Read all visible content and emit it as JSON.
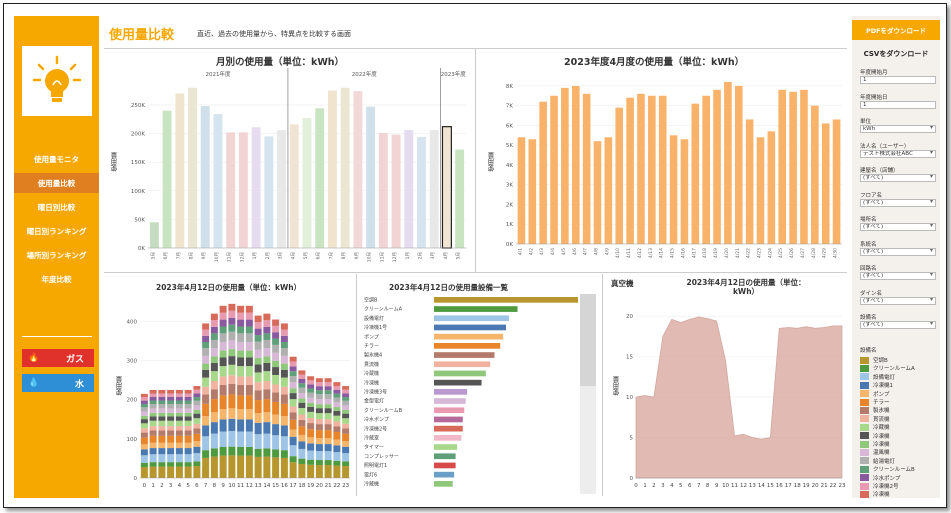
{
  "nav": {
    "items": [
      "使用量モニタ",
      "使用量比較",
      "曜日別比較",
      "曜日別ランキング",
      "場所別ランキング",
      "年度比較"
    ],
    "active_index": 1,
    "gas_label": "ガス",
    "water_label": "水"
  },
  "header": {
    "title": "使用量比較",
    "subtitle": "直近、過去の使用量から、特異点を比較する画面"
  },
  "sidebar": {
    "pdf_button": "PDFをダウンロード",
    "csv_button": "CSVをダウンロード",
    "filters": [
      {
        "label": "年度開始月",
        "value": "1",
        "type": "input"
      },
      {
        "label": "年度開始日",
        "value": "1",
        "type": "input"
      },
      {
        "label": "単位",
        "value": "kWh",
        "type": "select"
      },
      {
        "label": "法人名（ユーザー）",
        "value": "テスト株式会社ABC",
        "type": "select"
      },
      {
        "label": "建屋名（店舗）",
        "value": "(すべて)",
        "type": "select"
      },
      {
        "label": "フロア名",
        "value": "(すべて)",
        "type": "select"
      },
      {
        "label": "場所名",
        "value": "(すべて)",
        "type": "select"
      },
      {
        "label": "系統名",
        "value": "(すべて)",
        "type": "select"
      },
      {
        "label": "回路名",
        "value": "(すべて)",
        "type": "select"
      },
      {
        "label": "ダイン名",
        "value": "(すべて)",
        "type": "select"
      },
      {
        "label": "設備名",
        "value": "(すべて)",
        "type": "select"
      }
    ],
    "legend_title": "設備名",
    "legend": [
      {
        "name": "空調B",
        "color": "#b8962e"
      },
      {
        "name": "クリーンルームA",
        "color": "#4e9a3e"
      },
      {
        "name": "設備電灯",
        "color": "#9ec4e6"
      },
      {
        "name": "冷凍機1",
        "color": "#4a78b0"
      },
      {
        "name": "ポンプ",
        "color": "#f5b56a"
      },
      {
        "name": "チラー",
        "color": "#e8852a"
      },
      {
        "name": "製氷機",
        "color": "#b47a6a"
      },
      {
        "name": "貫流機",
        "color": "#f2b2a0"
      },
      {
        "name": "冷蔵機",
        "color": "#a8d88a"
      },
      {
        "name": "冷凍機",
        "color": "#555555"
      },
      {
        "name": "冷凍機",
        "color": "#8fc87a"
      },
      {
        "name": "温風機",
        "color": "#d7b8d7"
      },
      {
        "name": "給湯電灯",
        "color": "#b0b0b0"
      },
      {
        "name": "クリーンルームB",
        "color": "#5fa07a"
      },
      {
        "name": "冷水ポンプ",
        "color": "#8a5aa0"
      },
      {
        "name": "冷凍機2号",
        "color": "#e89ab0"
      },
      {
        "name": "冷凍機",
        "color": "#d86a5a"
      }
    ]
  },
  "chart_data": [
    {
      "type": "bar",
      "title": "月別の使用量（単位：kWh）",
      "ylabel": "使用量",
      "year_groups": [
        "2021年度",
        "2022年度",
        "2023年度"
      ],
      "categories": [
        "5月",
        "6月",
        "7月",
        "8月",
        "9月",
        "10月",
        "11月",
        "12月",
        "1月",
        "2月",
        "3月",
        "4月",
        "5月",
        "6月",
        "7月",
        "8月",
        "9月",
        "10月",
        "11月",
        "12月",
        "1月",
        "2月",
        "3月",
        "4月",
        "5月"
      ],
      "values": [
        45,
        240,
        270,
        280,
        248,
        234,
        202,
        202,
        211,
        195,
        206,
        216,
        227,
        244,
        275,
        280,
        274,
        247,
        201,
        198,
        206,
        194,
        206,
        212,
        172
      ],
      "colors": [
        "#c5dcc0",
        "#c9e4c1",
        "#f0e4cf",
        "#eae6d2",
        "#cfe0ea",
        "#d5e5ef",
        "#f2d4d4",
        "#f2d4d4",
        "#e5dcef",
        "#d6e4ef",
        "#e8e8e8",
        "#f2e4d2",
        "#e2f0da",
        "#c9e4c1",
        "#f0e4cf",
        "#eae6d2",
        "#f2d8d8",
        "#cfe0ea",
        "#f2d4d4",
        "#f2d4d4",
        "#e5dcef",
        "#d6e4ef",
        "#e8e8e8",
        "#f2e4d2",
        "#c9e4c1"
      ],
      "yticks": [
        "0K",
        "50K",
        "100K",
        "150K",
        "200K",
        "250K"
      ],
      "ylim": [
        0,
        290000
      ],
      "highlight_index": 23
    },
    {
      "type": "bar",
      "title": "2023年度4月度の使用量（単位：kWh）",
      "ylabel": "使用量",
      "categories": [
        "4/1",
        "4/2",
        "4/3",
        "4/4",
        "4/5",
        "4/6",
        "4/7",
        "4/8",
        "4/9",
        "4/10",
        "4/11",
        "4/12",
        "4/13",
        "4/14",
        "4/15",
        "4/16",
        "4/17",
        "4/18",
        "4/19",
        "4/20",
        "4/21",
        "4/22",
        "4/23",
        "4/24",
        "4/25",
        "4/26",
        "4/27",
        "4/28",
        "4/29",
        "4/30"
      ],
      "values": [
        5400,
        5300,
        7200,
        7500,
        7900,
        8000,
        7600,
        5200,
        5400,
        6900,
        7400,
        7600,
        7500,
        7500,
        5500,
        5300,
        7100,
        7500,
        7800,
        8200,
        8000,
        6300,
        5400,
        5700,
        7800,
        7700,
        7800,
        7000,
        6100,
        6300
      ],
      "yticks": [
        "0K",
        "1K",
        "2K",
        "3K",
        "4K",
        "5K",
        "6K",
        "7K",
        "8K"
      ],
      "ylim": [
        0,
        8500
      ],
      "color": "#f8b26a"
    },
    {
      "type": "stacked-bar",
      "title": "2023年4月12日の使用量（単位：kWh）",
      "ylabel": "使用量",
      "categories": [
        "0",
        "1",
        "2",
        "3",
        "4",
        "5",
        "6",
        "7",
        "8",
        "9",
        "10",
        "11",
        "12",
        "13",
        "14",
        "15",
        "16",
        "17",
        "18",
        "19",
        "20",
        "21",
        "22",
        "23"
      ],
      "totals": [
        215,
        225,
        225,
        225,
        225,
        225,
        235,
        395,
        420,
        440,
        445,
        440,
        440,
        415,
        420,
        405,
        395,
        310,
        275,
        260,
        255,
        255,
        245,
        235
      ],
      "yticks": [
        "0",
        "100",
        "200",
        "300",
        "400"
      ],
      "ylim": [
        0,
        460
      ]
    },
    {
      "type": "bar",
      "orientation": "horizontal",
      "title": "2023年4月12日の使用量設備一覧",
      "categories": [
        "空調B",
        "クリーンルームA",
        "設備電灯",
        "冷凍機1号",
        "ポンプ",
        "チラー",
        "製氷機4",
        "貫流機",
        "冷蔵機",
        "冷凍機",
        "冷凍機3号",
        "金型電灯",
        "クリーンルームB",
        "冷水ポンプ",
        "冷凍機2号",
        "冷蔵室",
        "タイマー",
        "コンプレッサー",
        "照明電灯1",
        "電灯6",
        "冷蔵機"
      ],
      "values": [
        100,
        58,
        52,
        50,
        48,
        46,
        42,
        39,
        36,
        33,
        23,
        22,
        21,
        20,
        20,
        19,
        16,
        15,
        15,
        14,
        13
      ],
      "colors": [
        "#b8962e",
        "#4e9a3e",
        "#9ec4e6",
        "#4a78b0",
        "#f5b56a",
        "#e8852a",
        "#b47a6a",
        "#f2b2a0",
        "#8fc87a",
        "#555555",
        "#b89ad0",
        "#d7b8d7",
        "#e89ab0",
        "#b56a9a",
        "#d86a5a",
        "#f0b8c8",
        "#a8d88a",
        "#5fa07a",
        "#d84a4a",
        "#6aa0c8",
        "#8fc87a"
      ]
    },
    {
      "type": "area",
      "title": "2023年4月12日の使用量（単位：kWh）",
      "equipment": "真空機",
      "ylabel": "使用量",
      "categories": [
        "0",
        "1",
        "2",
        "3",
        "4",
        "5",
        "6",
        "7",
        "8",
        "9",
        "10",
        "11",
        "12",
        "13",
        "14",
        "15",
        "16",
        "17",
        "18",
        "19",
        "20",
        "21",
        "22",
        "23"
      ],
      "values": [
        10,
        10.2,
        10,
        17.5,
        19.6,
        19.2,
        19.6,
        19.9,
        19.7,
        19.4,
        14.5,
        5.2,
        5.4,
        5.0,
        4.8,
        5.0,
        18.5,
        18.6,
        18.5,
        18.7,
        18.5,
        18.6,
        18.8,
        18.8
      ],
      "yticks": [
        "0",
        "5",
        "10",
        "15",
        "20"
      ],
      "ylim": [
        0,
        22
      ],
      "color": "#d7a49a"
    }
  ]
}
